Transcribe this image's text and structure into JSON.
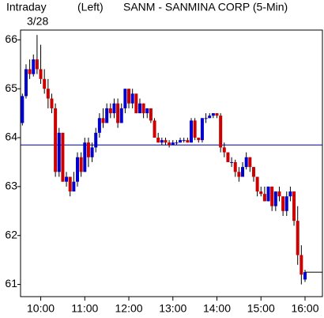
{
  "chart_data": {
    "type": "candlestick",
    "title": "SANM - SANMINA CORP (5-Min)",
    "label_left": "Intraday",
    "date": "3/28",
    "axis_side": "(Left)",
    "categories": [
      null,
      null,
      null,
      null,
      null,
      "10:00",
      null,
      null,
      null,
      null,
      null,
      null,
      null,
      null,
      null,
      null,
      null,
      "11:00",
      null,
      null,
      null,
      null,
      null,
      null,
      null,
      null,
      null,
      null,
      null,
      "12:00",
      null,
      null,
      null,
      null,
      null,
      null,
      null,
      null,
      null,
      null,
      null,
      "13:00",
      null,
      null,
      null,
      null,
      null,
      null,
      null,
      null,
      null,
      null,
      null,
      "14:00",
      null,
      null,
      null,
      null,
      null,
      null,
      null,
      null,
      null,
      null,
      null,
      "15:00",
      null,
      null,
      null,
      null,
      null,
      null,
      null,
      null,
      null,
      null,
      null,
      "16:00"
    ],
    "open": [
      64.3,
      64.85,
      65.4,
      65.3,
      65.6,
      65.4,
      65.2,
      65.0,
      64.8,
      64.6,
      63.3,
      64.1,
      63.1,
      63.2,
      62.9,
      63.1,
      63.6,
      63.3,
      63.9,
      63.6,
      63.8,
      64.1,
      64.4,
      64.3,
      64.6,
      64.5,
      64.7,
      64.3,
      64.6,
      65.0,
      64.7,
      64.9,
      64.5,
      64.7,
      64.5,
      64.6,
      64.35,
      64.0,
      63.9,
      63.95,
      63.9,
      63.85,
      63.9,
      63.9,
      63.95,
      63.95,
      63.9,
      64.35,
      64.0,
      63.95,
      64.4,
      64.4,
      64.45,
      64.5,
      64.45,
      63.8,
      63.7,
      63.5,
      63.5,
      63.3,
      63.2,
      63.4,
      63.6,
      63.4,
      63.2,
      62.9,
      62.85,
      62.7,
      63.0,
      62.6,
      62.9,
      62.8,
      62.5,
      62.8,
      62.9,
      62.3,
      61.6,
      61.1
    ],
    "high": [
      64.9,
      65.5,
      65.6,
      65.7,
      66.1,
      65.9,
      65.4,
      65.2,
      64.9,
      64.7,
      64.2,
      64.1,
      63.3,
      63.2,
      63.3,
      63.7,
      63.7,
      64.0,
      64.0,
      63.9,
      64.2,
      64.5,
      64.6,
      64.7,
      64.7,
      64.8,
      64.8,
      64.7,
      65.0,
      65.0,
      65.0,
      64.9,
      64.8,
      64.7,
      64.6,
      64.6,
      64.4,
      64.1,
      64.0,
      64.0,
      63.95,
      63.95,
      63.95,
      64.0,
      64.0,
      64.0,
      64.4,
      64.4,
      64.0,
      64.4,
      64.5,
      64.5,
      64.5,
      64.5,
      64.5,
      63.9,
      63.7,
      63.6,
      63.55,
      63.4,
      63.5,
      63.7,
      63.6,
      63.4,
      63.2,
      63.0,
      63.0,
      63.0,
      63.0,
      62.9,
      63.0,
      62.8,
      62.9,
      63.0,
      62.9,
      62.6,
      61.8,
      61.3
    ],
    "low": [
      64.25,
      64.8,
      65.2,
      65.25,
      65.3,
      65.1,
      64.9,
      64.6,
      64.5,
      63.2,
      63.2,
      63.1,
      63.0,
      62.8,
      62.9,
      63.0,
      63.2,
      63.3,
      63.4,
      63.5,
      63.7,
      64.0,
      64.2,
      64.3,
      64.4,
      64.4,
      64.2,
      64.3,
      64.5,
      64.6,
      64.6,
      64.5,
      64.5,
      64.4,
      64.4,
      64.3,
      64.0,
      63.9,
      63.85,
      63.85,
      63.8,
      63.85,
      63.85,
      63.9,
      63.9,
      63.9,
      63.9,
      63.95,
      63.9,
      63.9,
      64.3,
      64.4,
      64.4,
      64.4,
      63.7,
      63.6,
      63.5,
      63.4,
      63.2,
      63.1,
      63.2,
      63.35,
      63.3,
      63.1,
      62.8,
      62.8,
      62.7,
      62.7,
      62.5,
      62.5,
      62.7,
      62.4,
      62.4,
      62.7,
      62.2,
      61.4,
      61.0,
      61.05
    ],
    "close": [
      64.85,
      65.4,
      65.3,
      65.6,
      65.4,
      65.2,
      65.0,
      64.8,
      64.6,
      63.3,
      64.1,
      63.1,
      63.2,
      62.9,
      63.1,
      63.6,
      63.3,
      63.9,
      63.6,
      63.8,
      64.1,
      64.4,
      64.3,
      64.6,
      64.5,
      64.7,
      64.3,
      64.6,
      65.0,
      64.7,
      64.9,
      64.5,
      64.7,
      64.5,
      64.6,
      64.35,
      64.0,
      63.9,
      63.95,
      63.9,
      63.85,
      63.9,
      63.9,
      63.95,
      63.95,
      63.9,
      64.35,
      64.0,
      63.95,
      64.4,
      64.4,
      64.45,
      64.5,
      64.45,
      63.8,
      63.7,
      63.5,
      63.5,
      63.3,
      63.2,
      63.4,
      63.6,
      63.4,
      63.2,
      62.9,
      62.85,
      62.7,
      63.0,
      62.6,
      62.9,
      62.8,
      62.5,
      62.8,
      62.9,
      62.3,
      61.6,
      61.2,
      61.25
    ],
    "up_color": "#0000cc",
    "down_color": "#cc0000",
    "reference_line": 63.85,
    "reference_color": "#000080",
    "ylim": [
      60.75,
      66.2
    ],
    "yticks": [
      61,
      62,
      63,
      64,
      65,
      66
    ]
  }
}
